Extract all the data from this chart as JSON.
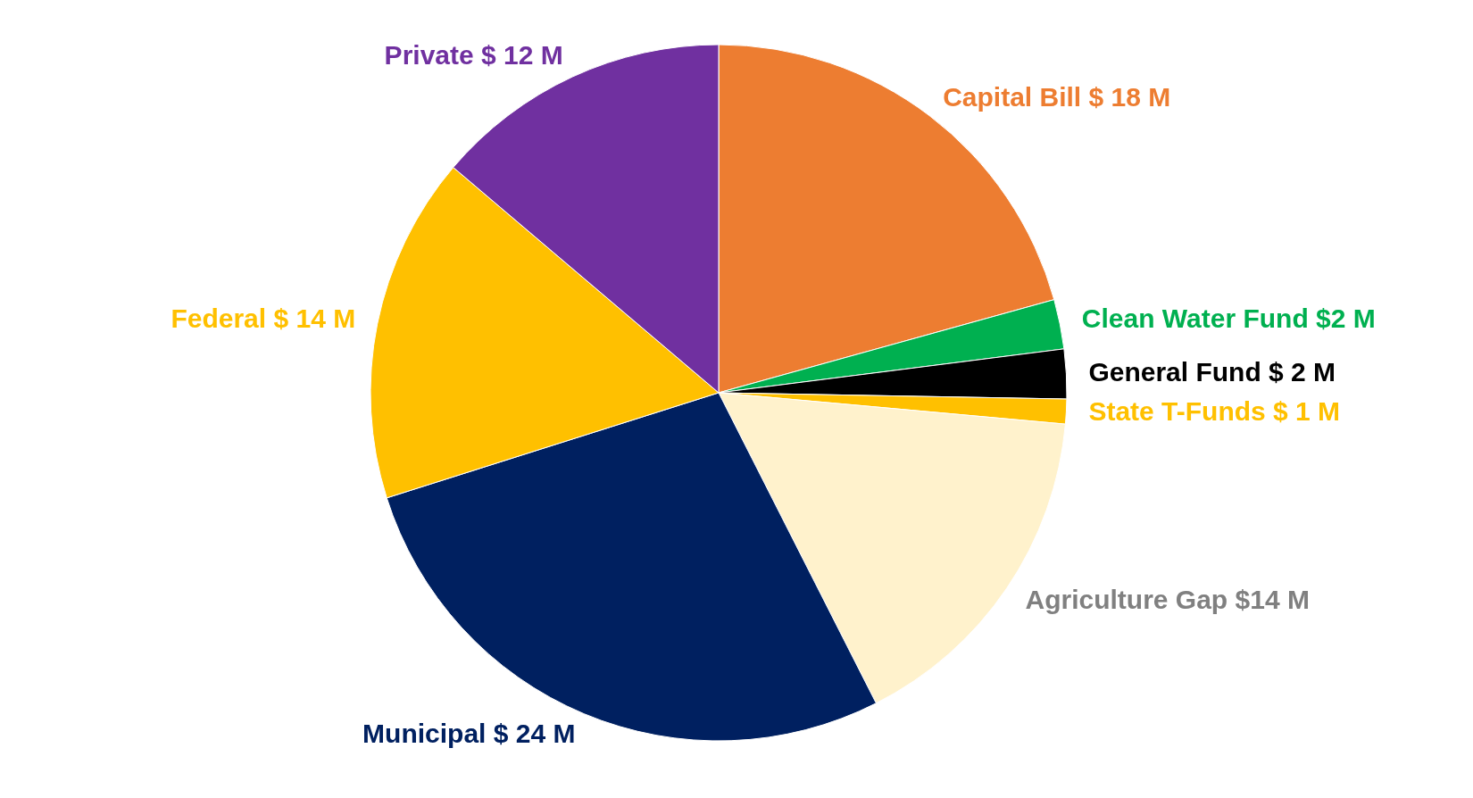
{
  "chart_data": {
    "type": "pie",
    "categories": [
      "Capital Bill $ 18 M",
      "Clean Water Fund $2 M",
      "General Fund $ 2 M",
      "State T-Funds $ 1 M",
      "Agriculture Gap $14 M",
      "Municipal $ 24 M",
      "Federal  $ 14 M",
      "Private $ 12 M"
    ],
    "values": [
      18,
      2,
      2,
      1,
      14,
      24,
      14,
      12
    ],
    "colors": [
      "#ed7d31",
      "#00b050",
      "#000000",
      "#ffc000",
      "#fff2cc",
      "#002060",
      "#ffc000",
      "#7030a0"
    ],
    "legend": false
  }
}
